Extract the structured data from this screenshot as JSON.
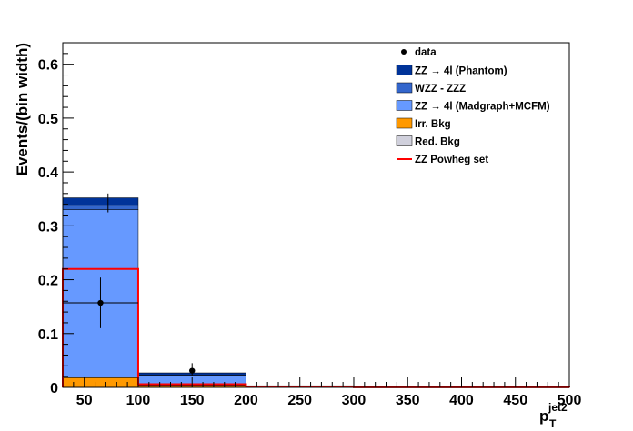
{
  "chart_data": {
    "type": "bar",
    "stacked": true,
    "xlabel_base": "p",
    "xlabel_sub": "T",
    "xlabel_sup": "jet2",
    "ylabel": "Events/(bin width)",
    "xlim": [
      30,
      500
    ],
    "ylim": [
      0,
      0.64
    ],
    "x_ticks": [
      50,
      100,
      150,
      200,
      250,
      300,
      350,
      400,
      450,
      500
    ],
    "x_tick_labels": [
      "50",
      "100",
      "150",
      "200",
      "250",
      "300",
      "350",
      "400",
      "450",
      "500"
    ],
    "y_ticks": [
      0,
      0.1,
      0.2,
      0.3,
      0.4,
      0.5,
      0.6
    ],
    "y_tick_labels": [
      "0",
      "0.1",
      "0.2",
      "0.3",
      "0.4",
      "0.5",
      "0.6"
    ],
    "bins": [
      [
        30,
        100
      ],
      [
        100,
        200
      ],
      [
        200,
        300
      ],
      [
        300,
        500
      ]
    ],
    "legend_position": "top-right",
    "series": [
      {
        "name": "Red. Bkg",
        "color": "#d0d0dc",
        "values": [
          0.0,
          0.0,
          0.0,
          0.0
        ]
      },
      {
        "name": "Irr. Bkg",
        "color": "#ff9900",
        "values": [
          0.018,
          0.004,
          0.0,
          0.0
        ]
      },
      {
        "name": "ZZ → 4l (Madgraph+MCFM)",
        "color": "#6699ff",
        "values": [
          0.312,
          0.018,
          0.0015,
          0.0
        ]
      },
      {
        "name": "WZZ - ZZZ",
        "color": "#3366cc",
        "values": [
          0.008,
          0.001,
          0.0002,
          0.0
        ]
      },
      {
        "name": "ZZ → 4l (Phantom)",
        "color": "#003399",
        "values": [
          0.014,
          0.004,
          0.0008,
          0.0002
        ]
      }
    ],
    "powheg": {
      "name": "ZZ Powheg set",
      "color": "#ff0000",
      "values": [
        0.22,
        0.006,
        0.001,
        0.0002
      ]
    },
    "data_points": {
      "name": "data",
      "x": [
        65,
        150
      ],
      "y": [
        0.157,
        0.031
      ],
      "yerr_low": [
        0.047,
        0.009
      ],
      "yerr_high": [
        0.047,
        0.014
      ],
      "xerr": [
        35,
        0
      ]
    },
    "mc_error": [
      {
        "bin": 0,
        "low": 0.325,
        "high": 0.36
      }
    ]
  }
}
